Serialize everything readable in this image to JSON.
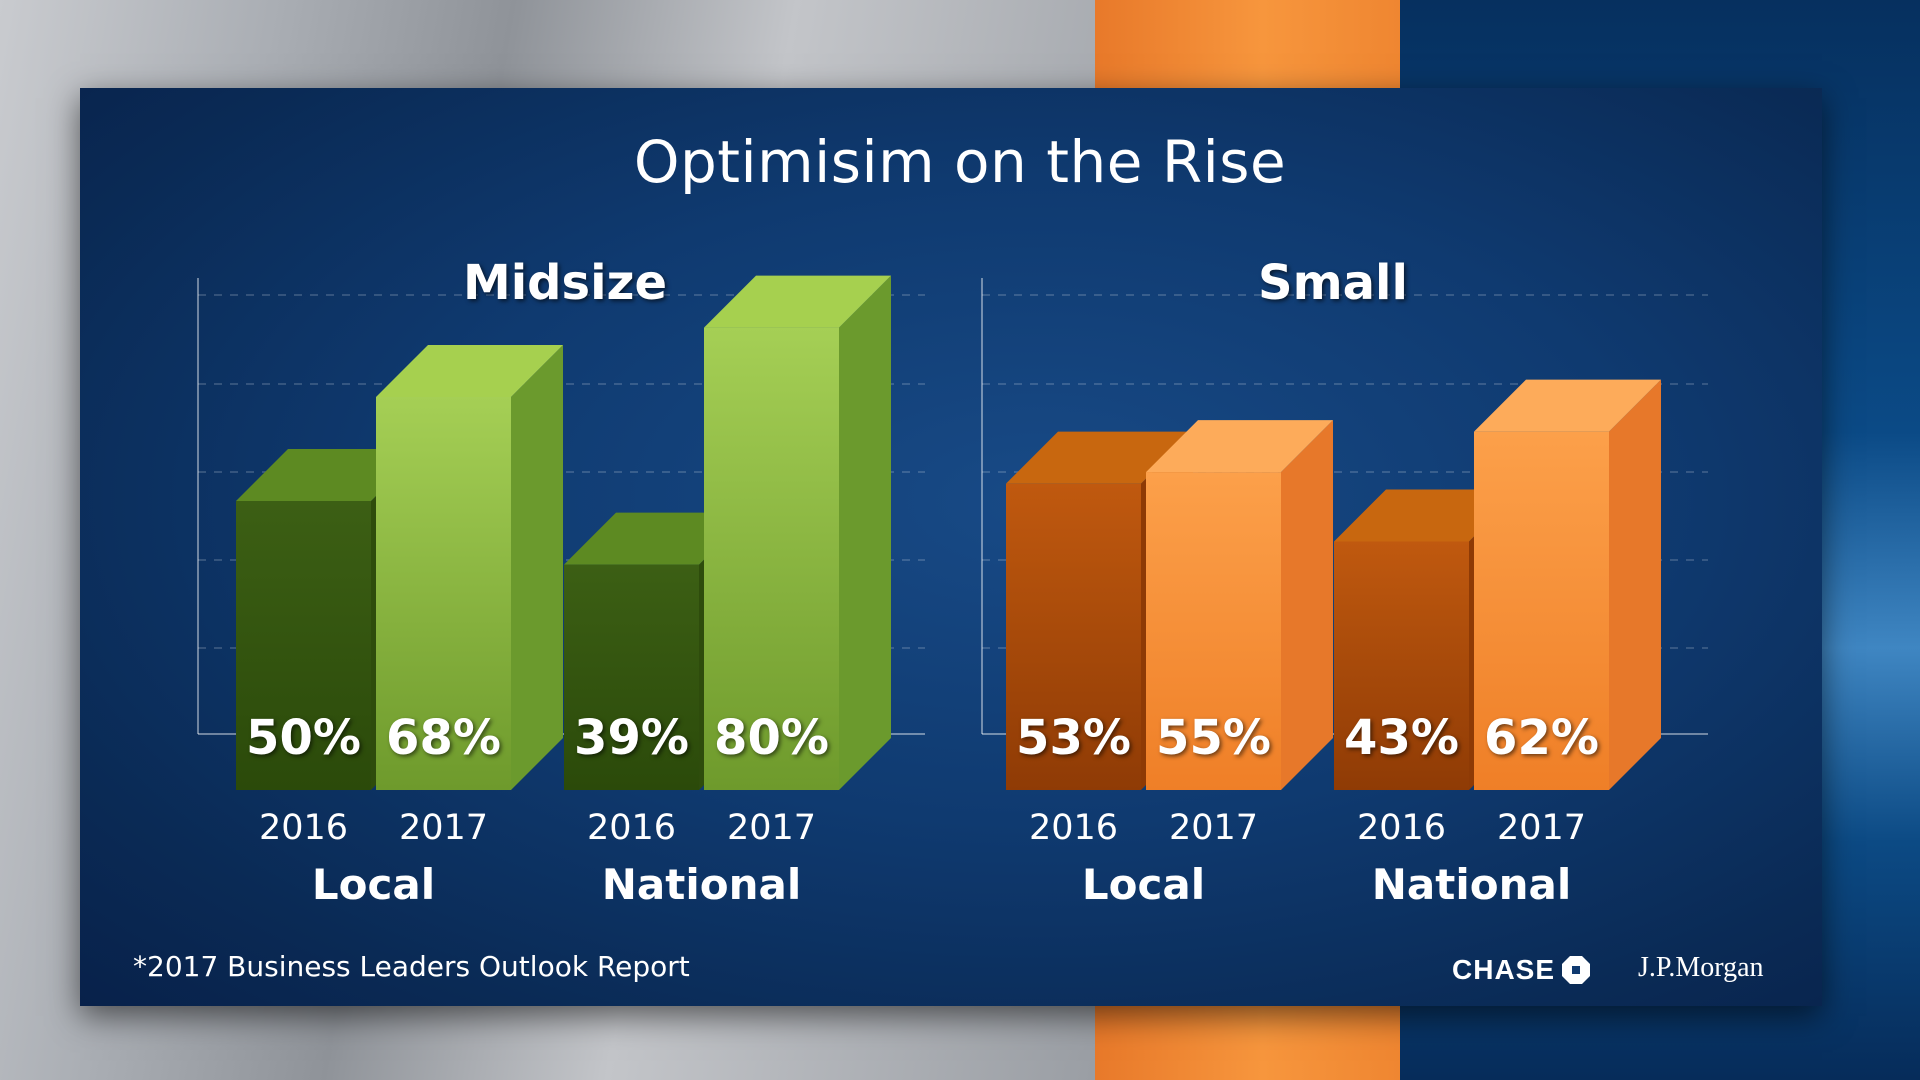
{
  "title": "Optimisim on the Rise",
  "footnote": "*2017 Business Leaders Outlook Report",
  "logos": {
    "chase": "CHASE",
    "jpmorgan": "J.P.Morgan"
  },
  "colors": {
    "green_2016": "#3f6414",
    "green_2017": "#8ab83e",
    "orange_2016": "#b9540d",
    "orange_2017": "#f7913a"
  },
  "chart_data": [
    {
      "type": "bar",
      "title": "Midsize",
      "categories": [
        "Local",
        "National"
      ],
      "series": [
        {
          "name": "2016",
          "values": [
            50,
            39
          ]
        },
        {
          "name": "2017",
          "values": [
            68,
            80
          ]
        }
      ],
      "value_labels": [
        [
          "50%",
          "68%"
        ],
        [
          "39%",
          "80%"
        ]
      ],
      "ylim": [
        0,
        100
      ],
      "grid": true,
      "palette": "green"
    },
    {
      "type": "bar",
      "title": "Small",
      "categories": [
        "Local",
        "National"
      ],
      "series": [
        {
          "name": "2016",
          "values": [
            53,
            43
          ]
        },
        {
          "name": "2017",
          "values": [
            55,
            62
          ]
        }
      ],
      "value_labels": [
        [
          "53%",
          "55%"
        ],
        [
          "43%",
          "62%"
        ]
      ],
      "ylim": [
        0,
        100
      ],
      "grid": true,
      "palette": "orange"
    }
  ]
}
